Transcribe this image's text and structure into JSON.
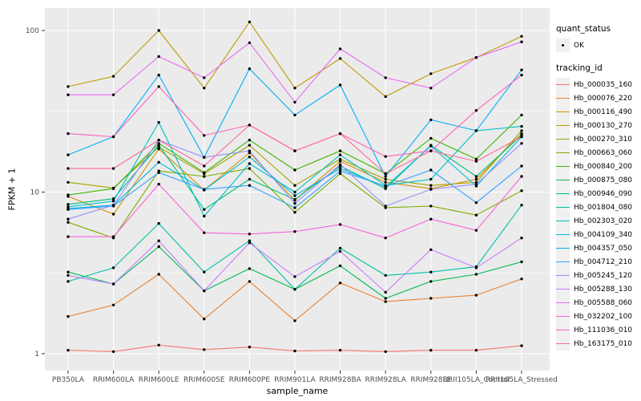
{
  "figure": {
    "x_axis_title": "sample_name",
    "y_axis_title": "FPKM + 1"
  },
  "legend": {
    "quant_status_title": "quant_status",
    "quant_status_items": [
      {
        "label": "OK",
        "symbol": "point",
        "color": "#000000"
      }
    ],
    "tracking_title": "tracking_id"
  },
  "chart_data": {
    "type": "line",
    "xlabel": "sample_name",
    "ylabel": "FPKM + 1",
    "yscale": "log10",
    "y_ticks": [
      1,
      10,
      100
    ],
    "y_minor_ticks": [
      3.162,
      31.62
    ],
    "ylim": [
      0.79,
      138
    ],
    "grid": "on",
    "legend_position": "right",
    "panel_color": "#EBEBEB",
    "grid_color": "#FFFFFF",
    "tick_label_color": "#4D4D4D",
    "point_color": "#000000",
    "x": [
      "PB350LA",
      "RRIM600LA",
      "RRIM600LE",
      "RRIM600SE",
      "RRIM600PE",
      "RRIM901LA",
      "RRIM928BA",
      "RRIM928LA",
      "RRIM928LE",
      "RRII105LA_Control",
      "RRII105LA_Stressed"
    ],
    "series": [
      {
        "name": "Hb_000035_160",
        "color": "#F8766D",
        "values": [
          1.05,
          1.03,
          1.13,
          1.06,
          1.1,
          1.04,
          1.05,
          1.03,
          1.05,
          1.05,
          1.12
        ]
      },
      {
        "name": "Hb_000076_220",
        "color": "#EA8331",
        "values": [
          1.7,
          2.0,
          3.1,
          1.64,
          2.8,
          1.6,
          2.74,
          2.1,
          2.2,
          2.3,
          2.9
        ]
      },
      {
        "name": "Hb_000116_490",
        "color": "#D89000",
        "values": [
          9.4,
          7.3,
          18.5,
          10.3,
          17.5,
          8.9,
          15.5,
          11.5,
          10.5,
          12.0,
          23.0
        ]
      },
      {
        "name": "Hb_000130_270",
        "color": "#C09B00",
        "values": [
          45,
          52,
          100,
          44,
          113,
          44,
          67,
          39,
          54,
          68,
          92
        ]
      },
      {
        "name": "Hb_000270_310",
        "color": "#A3A500",
        "values": [
          11.5,
          10.6,
          19.0,
          13.0,
          19.5,
          11.0,
          16.0,
          12.0,
          11.0,
          11.5,
          24.0
        ]
      },
      {
        "name": "Hb_000663_060",
        "color": "#7CAE00",
        "values": [
          6.5,
          5.2,
          13.5,
          12.5,
          14.0,
          7.5,
          13.0,
          8.0,
          8.2,
          7.2,
          10.2
        ]
      },
      {
        "name": "Hb_000840_200",
        "color": "#39B600",
        "values": [
          9.6,
          10.5,
          20.0,
          13.2,
          21.0,
          13.7,
          18.0,
          13.0,
          21.5,
          16.0,
          30.0
        ]
      },
      {
        "name": "Hb_000875_080",
        "color": "#00BB4E",
        "values": [
          3.2,
          2.7,
          4.6,
          2.45,
          3.36,
          2.5,
          3.5,
          2.2,
          2.8,
          3.1,
          3.7
        ]
      },
      {
        "name": "Hb_000946_090",
        "color": "#00BF7D",
        "values": [
          8.4,
          9.1,
          19.5,
          7.8,
          12.0,
          9.0,
          14.5,
          10.5,
          19.5,
          12.5,
          22.5
        ]
      },
      {
        "name": "Hb_001804_080",
        "color": "#00C1A3",
        "values": [
          2.8,
          3.4,
          6.4,
          3.2,
          5.0,
          2.5,
          4.5,
          3.05,
          3.2,
          3.45,
          8.3
        ]
      },
      {
        "name": "Hb_002303_020",
        "color": "#00BFC4",
        "values": [
          8.1,
          8.8,
          27.0,
          7.1,
          15.0,
          10.0,
          17.0,
          11.0,
          12.0,
          24.0,
          25.5
        ]
      },
      {
        "name": "Hb_004109_340",
        "color": "#00BAE0",
        "values": [
          7.9,
          8.3,
          15.3,
          10.3,
          16.5,
          9.5,
          14.0,
          10.8,
          19.3,
          10.9,
          22.0
        ]
      },
      {
        "name": "Hb_004357_050",
        "color": "#00B0F6",
        "values": [
          17,
          22,
          53,
          16.4,
          58,
          30,
          46,
          12.5,
          28,
          24,
          57
        ]
      },
      {
        "name": "Hb_004712_210",
        "color": "#35A2FF",
        "values": [
          7.8,
          8.2,
          13.2,
          10.4,
          11.0,
          8.0,
          13.5,
          10.9,
          13.7,
          8.6,
          14.5
        ]
      },
      {
        "name": "Hb_005245_120",
        "color": "#9590FF",
        "values": [
          6.8,
          8.3,
          21.0,
          16.4,
          18.0,
          8.5,
          14.8,
          8.2,
          10.4,
          11.2,
          20.0
        ]
      },
      {
        "name": "Hb_005288_130",
        "color": "#C77CFF",
        "values": [
          3.05,
          2.7,
          5.0,
          2.45,
          4.85,
          3.0,
          4.3,
          2.4,
          4.4,
          3.4,
          5.2
        ]
      },
      {
        "name": "Hb_005588_060",
        "color": "#E76BF3",
        "values": [
          40,
          40,
          69,
          51,
          84,
          36,
          77,
          51,
          44,
          68,
          85
        ]
      },
      {
        "name": "Hb_032202_100",
        "color": "#FA62DB",
        "values": [
          5.3,
          5.3,
          11.2,
          5.6,
          5.5,
          5.7,
          6.3,
          5.2,
          6.8,
          5.8,
          12.5
        ]
      },
      {
        "name": "Hb_111036_010",
        "color": "#FF62BC",
        "values": [
          23,
          22,
          45,
          22.4,
          26,
          18,
          23,
          16.6,
          18,
          32,
          53
        ]
      },
      {
        "name": "Hb_163175_010",
        "color": "#FF6A98",
        "values": [
          14,
          14,
          21,
          14.5,
          26,
          18,
          23,
          13,
          18,
          15.5,
          22
        ]
      }
    ]
  }
}
